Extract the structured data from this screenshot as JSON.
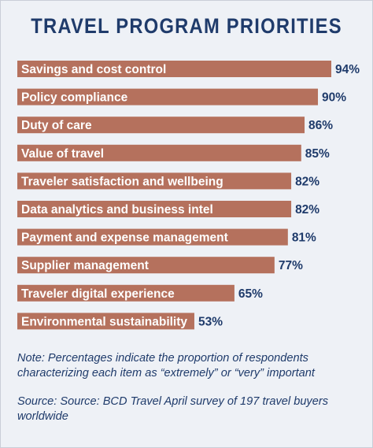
{
  "title": "TRAVEL PROGRAM PRIORITIES",
  "note": "Note: Percentages indicate the proportion of respondents characterizing each item as “extremely” or “very” important",
  "source": "Source: Source: BCD Travel April survey of 197 travel buyers worldwide",
  "colors": {
    "bar": "#b5715d",
    "text": "#1f3b6b",
    "background": "#eef1f6"
  },
  "chart_data": {
    "type": "bar",
    "orientation": "horizontal",
    "title": "TRAVEL PROGRAM PRIORITIES",
    "categories": [
      "Savings and cost control",
      "Policy compliance",
      "Duty of care",
      "Value of travel",
      "Traveler satisfaction and wellbeing",
      "Data analytics and business intel",
      "Payment and expense management",
      "Supplier management",
      "Traveler digital experience",
      "Environmental sustainability"
    ],
    "values": [
      94,
      90,
      86,
      85,
      82,
      82,
      81,
      77,
      65,
      53
    ],
    "value_labels": [
      "94%",
      "90%",
      "86%",
      "85%",
      "82%",
      "82%",
      "81%",
      "77%",
      "65%",
      "53%"
    ],
    "unit": "%",
    "xlim": [
      0,
      100
    ],
    "grid": false,
    "legend": "none"
  }
}
